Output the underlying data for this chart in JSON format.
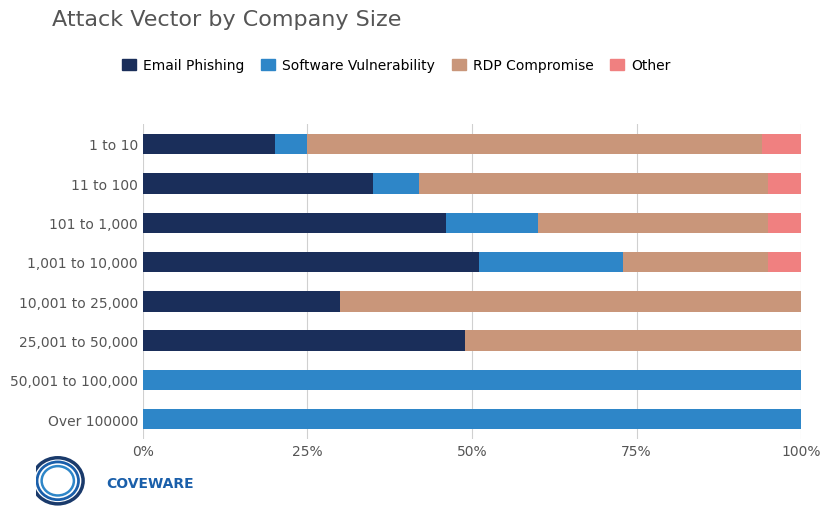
{
  "title": "Attack Vector by Company Size",
  "categories": [
    "Over 100000",
    "50,001 to 100,000",
    "25,001 to 50,000",
    "10,001 to 25,000",
    "1,001 to 10,000",
    "101 to 1,000",
    "11 to 100",
    "1 to 10"
  ],
  "series": {
    "Email Phishing": [
      0,
      0,
      49,
      30,
      51,
      46,
      35,
      20
    ],
    "Software Vulnerability": [
      100,
      100,
      0,
      0,
      22,
      14,
      7,
      5
    ],
    "RDP Compromise": [
      0,
      0,
      51,
      70,
      22,
      35,
      53,
      69
    ],
    "Other": [
      0,
      0,
      0,
      0,
      5,
      5,
      5,
      6
    ]
  },
  "colors": {
    "Email Phishing": "#1a2e5a",
    "Software Vulnerability": "#2e86c8",
    "RDP Compromise": "#c9967a",
    "Other": "#f08080"
  },
  "legend_labels": [
    "Email Phishing",
    "Software Vulnerability",
    "RDP Compromise",
    "Other"
  ],
  "background_color": "#ffffff",
  "bar_height": 0.52,
  "grid_color": "#d0d0d0",
  "logo_text": "COVEWARE",
  "title_fontsize": 16,
  "tick_fontsize": 10,
  "legend_fontsize": 10
}
